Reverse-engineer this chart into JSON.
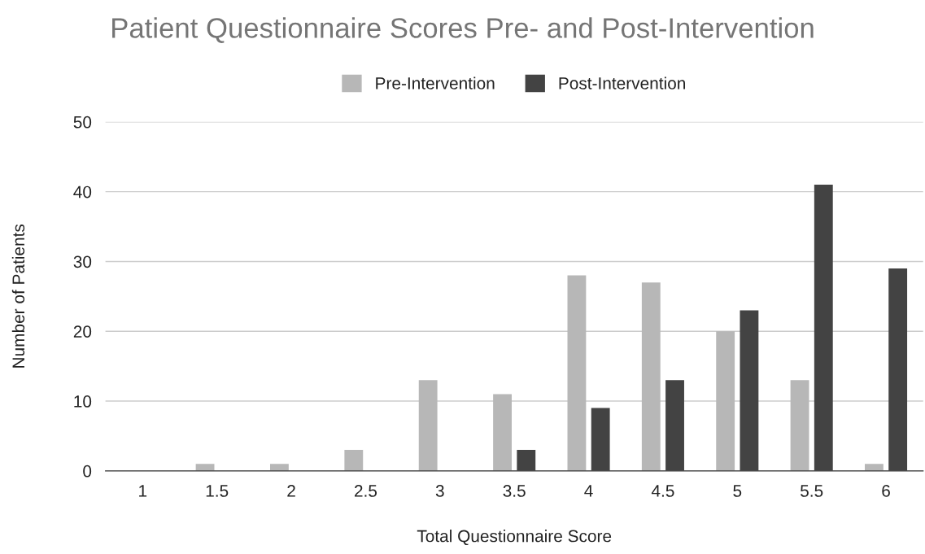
{
  "chart_data": {
    "type": "bar",
    "title": "Patient Questionnaire Scores Pre- and Post-Intervention",
    "xlabel": "Total Questionnaire Score",
    "ylabel": "Number of Patients",
    "categories": [
      "1",
      "1.5",
      "2",
      "2.5",
      "3",
      "3.5",
      "4",
      "4.5",
      "5",
      "5.5",
      "6"
    ],
    "series": [
      {
        "name": "Pre-Intervention",
        "color": "#b7b7b7",
        "values": [
          0,
          1,
          1,
          3,
          13,
          11,
          28,
          27,
          20,
          13,
          1
        ]
      },
      {
        "name": "Post-Intervention",
        "color": "#434343",
        "values": [
          0,
          0,
          0,
          0,
          0,
          3,
          9,
          13,
          23,
          41,
          29
        ]
      }
    ],
    "ylim": [
      0,
      50
    ],
    "yticks": [
      0,
      10,
      20,
      30,
      40,
      50
    ],
    "grid": "y",
    "legend": "top"
  }
}
